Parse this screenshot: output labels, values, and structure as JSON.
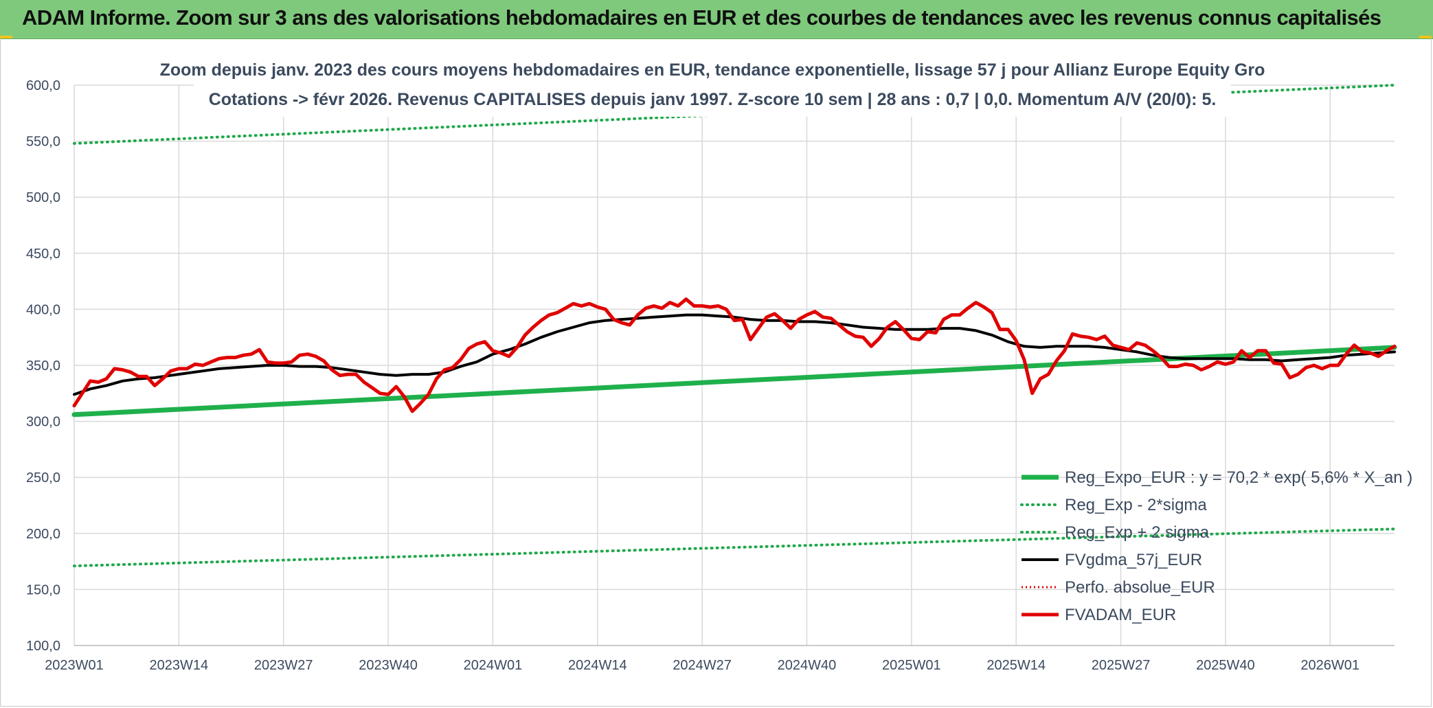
{
  "header": {
    "title": "ADAM Informe. Zoom sur 3 ans des valorisations hebdomadaires en EUR et des courbes de tendances avec les revenus connus capitalisés"
  },
  "colors": {
    "header_bg": "#7fc97c",
    "reg_expo": "#1fb04c",
    "reg_band": "#1fa84a",
    "fvgdma": "#000000",
    "perfo": "#e00000",
    "fvadam": "#e00000",
    "grid": "#d9d9d9",
    "text": "#3b4a5e"
  },
  "chart_data": {
    "type": "line",
    "title_lines": [
      "Zoom depuis janv. 2023 des cours moyens hebdomadaires en EUR, tendance exponentielle, lissage 57 j pour Allianz Europe Equity Gro",
      "Cotations -> févr 2026. Revenus CAPITALISES depuis janv 1997. Z-score 10 sem | 28 ans : 0,7 | 0,0. Momentum A/V (20/0): 5."
    ],
    "ylim": [
      100,
      600
    ],
    "y_ticks": [
      "100,0",
      "150,0",
      "200,0",
      "250,0",
      "300,0",
      "350,0",
      "400,0",
      "450,0",
      "500,0",
      "550,0",
      "600,0"
    ],
    "x_ticks": [
      {
        "label": "2023W01",
        "week": 0
      },
      {
        "label": "2023W14",
        "week": 13
      },
      {
        "label": "2023W27",
        "week": 26
      },
      {
        "label": "2023W40",
        "week": 39
      },
      {
        "label": "2024W01",
        "week": 52
      },
      {
        "label": "2024W14",
        "week": 65
      },
      {
        "label": "2024W27",
        "week": 78
      },
      {
        "label": "2024W40",
        "week": 91
      },
      {
        "label": "2025W01",
        "week": 104
      },
      {
        "label": "2025W14",
        "week": 117
      },
      {
        "label": "2025W27",
        "week": 130
      },
      {
        "label": "2025W40",
        "week": 143
      },
      {
        "label": "2026W01",
        "week": 156
      }
    ],
    "x_max_week": 164,
    "legend_position": "bottom-right",
    "series": [
      {
        "name": "Reg_Expo_EUR : y = 70,2 * exp( 5,6% *  X_an )",
        "style": "thick",
        "points": [
          [
            0,
            306
          ],
          [
            164,
            366
          ]
        ]
      },
      {
        "name": "Reg_Exp - 2*sigma",
        "style": "dotted",
        "points": [
          [
            0,
            171
          ],
          [
            164,
            204
          ]
        ]
      },
      {
        "name": "Reg_Exp + 2 sigma",
        "style": "dotted",
        "points": [
          [
            0,
            548
          ],
          [
            164,
            600
          ]
        ]
      },
      {
        "name": "FVgdma_57j_EUR",
        "style": "solid",
        "points": [
          [
            0,
            324
          ],
          [
            2,
            329
          ],
          [
            4,
            332
          ],
          [
            6,
            336
          ],
          [
            8,
            338
          ],
          [
            10,
            339
          ],
          [
            12,
            341
          ],
          [
            14,
            343
          ],
          [
            16,
            345
          ],
          [
            18,
            347
          ],
          [
            20,
            348
          ],
          [
            22,
            349
          ],
          [
            24,
            350
          ],
          [
            26,
            350
          ],
          [
            28,
            349
          ],
          [
            30,
            349
          ],
          [
            32,
            348
          ],
          [
            34,
            346
          ],
          [
            36,
            344
          ],
          [
            38,
            342
          ],
          [
            40,
            341
          ],
          [
            42,
            342
          ],
          [
            44,
            342
          ],
          [
            46,
            344
          ],
          [
            48,
            349
          ],
          [
            50,
            353
          ],
          [
            52,
            360
          ],
          [
            54,
            364
          ],
          [
            56,
            369
          ],
          [
            58,
            375
          ],
          [
            60,
            380
          ],
          [
            62,
            384
          ],
          [
            64,
            388
          ],
          [
            66,
            390
          ],
          [
            68,
            391
          ],
          [
            70,
            392
          ],
          [
            72,
            393
          ],
          [
            74,
            394
          ],
          [
            76,
            395
          ],
          [
            78,
            395
          ],
          [
            80,
            394
          ],
          [
            82,
            393
          ],
          [
            84,
            391
          ],
          [
            86,
            390
          ],
          [
            88,
            390
          ],
          [
            90,
            389
          ],
          [
            92,
            389
          ],
          [
            94,
            388
          ],
          [
            96,
            386
          ],
          [
            98,
            384
          ],
          [
            100,
            383
          ],
          [
            102,
            382
          ],
          [
            104,
            382
          ],
          [
            106,
            382
          ],
          [
            108,
            383
          ],
          [
            110,
            383
          ],
          [
            112,
            381
          ],
          [
            114,
            377
          ],
          [
            116,
            371
          ],
          [
            118,
            367
          ],
          [
            120,
            366
          ],
          [
            122,
            367
          ],
          [
            124,
            367
          ],
          [
            126,
            367
          ],
          [
            128,
            366
          ],
          [
            130,
            364
          ],
          [
            132,
            362
          ],
          [
            134,
            359
          ],
          [
            136,
            357
          ],
          [
            138,
            356
          ],
          [
            140,
            356
          ],
          [
            142,
            356
          ],
          [
            144,
            356
          ],
          [
            146,
            355
          ],
          [
            148,
            355
          ],
          [
            150,
            354
          ],
          [
            152,
            355
          ],
          [
            154,
            356
          ],
          [
            156,
            357
          ],
          [
            158,
            359
          ],
          [
            160,
            360
          ],
          [
            162,
            361
          ],
          [
            164,
            362
          ]
        ]
      },
      {
        "name": "Perfo. absolue_EUR",
        "style": "dotted",
        "points": []
      },
      {
        "name": "FVADAM_EUR",
        "style": "thick",
        "points": [
          [
            0,
            314
          ],
          [
            1,
            325
          ],
          [
            2,
            336
          ],
          [
            3,
            335
          ],
          [
            4,
            338
          ],
          [
            5,
            347
          ],
          [
            6,
            346
          ],
          [
            7,
            344
          ],
          [
            8,
            340
          ],
          [
            9,
            340
          ],
          [
            10,
            332
          ],
          [
            11,
            338
          ],
          [
            12,
            345
          ],
          [
            13,
            347
          ],
          [
            14,
            347
          ],
          [
            15,
            351
          ],
          [
            16,
            350
          ],
          [
            17,
            353
          ],
          [
            18,
            356
          ],
          [
            19,
            357
          ],
          [
            20,
            357
          ],
          [
            21,
            359
          ],
          [
            22,
            360
          ],
          [
            23,
            364
          ],
          [
            24,
            353
          ],
          [
            25,
            352
          ],
          [
            26,
            352
          ],
          [
            27,
            353
          ],
          [
            28,
            359
          ],
          [
            29,
            360
          ],
          [
            30,
            358
          ],
          [
            31,
            354
          ],
          [
            32,
            346
          ],
          [
            33,
            341
          ],
          [
            34,
            342
          ],
          [
            35,
            342
          ],
          [
            36,
            335
          ],
          [
            37,
            330
          ],
          [
            38,
            325
          ],
          [
            39,
            324
          ],
          [
            40,
            331
          ],
          [
            41,
            322
          ],
          [
            42,
            309
          ],
          [
            43,
            316
          ],
          [
            44,
            324
          ],
          [
            45,
            338
          ],
          [
            46,
            346
          ],
          [
            47,
            348
          ],
          [
            48,
            355
          ],
          [
            49,
            365
          ],
          [
            50,
            369
          ],
          [
            51,
            371
          ],
          [
            52,
            363
          ],
          [
            53,
            361
          ],
          [
            54,
            358
          ],
          [
            55,
            366
          ],
          [
            56,
            377
          ],
          [
            57,
            384
          ],
          [
            58,
            390
          ],
          [
            59,
            395
          ],
          [
            60,
            397
          ],
          [
            61,
            401
          ],
          [
            62,
            405
          ],
          [
            63,
            403
          ],
          [
            64,
            405
          ],
          [
            65,
            402
          ],
          [
            66,
            400
          ],
          [
            67,
            391
          ],
          [
            68,
            388
          ],
          [
            69,
            386
          ],
          [
            70,
            395
          ],
          [
            71,
            401
          ],
          [
            72,
            403
          ],
          [
            73,
            401
          ],
          [
            74,
            406
          ],
          [
            75,
            403
          ],
          [
            76,
            409
          ],
          [
            77,
            403
          ],
          [
            78,
            403
          ],
          [
            79,
            402
          ],
          [
            80,
            403
          ],
          [
            81,
            400
          ],
          [
            82,
            390
          ],
          [
            83,
            391
          ],
          [
            84,
            373
          ],
          [
            85,
            383
          ],
          [
            86,
            393
          ],
          [
            87,
            396
          ],
          [
            88,
            390
          ],
          [
            89,
            383
          ],
          [
            90,
            391
          ],
          [
            91,
            395
          ],
          [
            92,
            398
          ],
          [
            93,
            393
          ],
          [
            94,
            392
          ],
          [
            95,
            386
          ],
          [
            96,
            380
          ],
          [
            97,
            376
          ],
          [
            98,
            375
          ],
          [
            99,
            367
          ],
          [
            100,
            374
          ],
          [
            101,
            384
          ],
          [
            102,
            389
          ],
          [
            103,
            382
          ],
          [
            104,
            374
          ],
          [
            105,
            373
          ],
          [
            106,
            380
          ],
          [
            107,
            379
          ],
          [
            108,
            391
          ],
          [
            109,
            395
          ],
          [
            110,
            395
          ],
          [
            111,
            401
          ],
          [
            112,
            406
          ],
          [
            113,
            402
          ],
          [
            114,
            397
          ],
          [
            115,
            382
          ],
          [
            116,
            382
          ],
          [
            117,
            372
          ],
          [
            118,
            355
          ],
          [
            119,
            325
          ],
          [
            120,
            338
          ],
          [
            121,
            342
          ],
          [
            122,
            354
          ],
          [
            123,
            363
          ],
          [
            124,
            378
          ],
          [
            125,
            376
          ],
          [
            126,
            375
          ],
          [
            127,
            373
          ],
          [
            128,
            376
          ],
          [
            129,
            368
          ],
          [
            130,
            366
          ],
          [
            131,
            364
          ],
          [
            132,
            370
          ],
          [
            133,
            368
          ],
          [
            134,
            363
          ],
          [
            135,
            357
          ],
          [
            136,
            349
          ],
          [
            137,
            349
          ],
          [
            138,
            351
          ],
          [
            139,
            350
          ],
          [
            140,
            346
          ],
          [
            141,
            349
          ],
          [
            142,
            353
          ],
          [
            143,
            351
          ],
          [
            144,
            353
          ],
          [
            145,
            363
          ],
          [
            146,
            357
          ],
          [
            147,
            363
          ],
          [
            148,
            363
          ],
          [
            149,
            352
          ],
          [
            150,
            351
          ],
          [
            151,
            339
          ],
          [
            152,
            342
          ],
          [
            153,
            348
          ],
          [
            154,
            350
          ],
          [
            155,
            347
          ],
          [
            156,
            350
          ],
          [
            157,
            350
          ],
          [
            158,
            360
          ],
          [
            159,
            368
          ],
          [
            160,
            362
          ],
          [
            161,
            361
          ],
          [
            162,
            358
          ],
          [
            163,
            363
          ],
          [
            164,
            367
          ]
        ]
      }
    ]
  }
}
